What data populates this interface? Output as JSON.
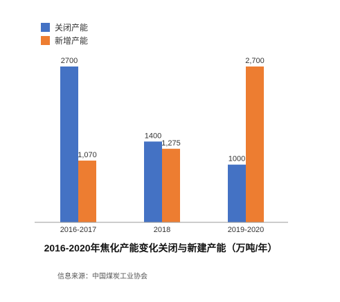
{
  "chart_data": {
    "type": "bar",
    "title": "2016-2020年焦化产能变化关闭与新建产能（万吨/年）",
    "categories": [
      "2016-2017",
      "2018",
      "2019-2020"
    ],
    "series": [
      {
        "name": "关闭产能",
        "values": [
          2700,
          1400,
          1000
        ],
        "labels": [
          "2700",
          "1400",
          "1000"
        ],
        "color": "#4472C4"
      },
      {
        "name": "新增产能",
        "values": [
          1070,
          1275,
          2700
        ],
        "labels": [
          "1,070",
          "1,275",
          "2,700"
        ],
        "color": "#ED7D31"
      }
    ],
    "ylim": [
      0,
      2700
    ],
    "grid": false,
    "legend_position": "top-left",
    "xlabel": "",
    "ylabel": ""
  },
  "source": "信息来源：中国煤炭工业协会"
}
